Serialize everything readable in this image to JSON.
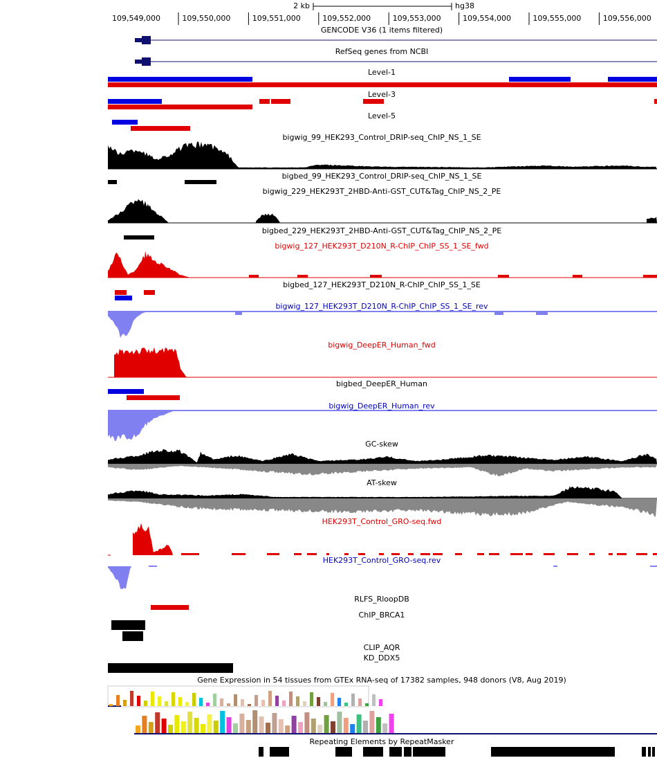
{
  "ruler": {
    "scale": "2 kb",
    "assembly": "hg38",
    "positions": [
      "109,549,000",
      "109,550,000",
      "109,551,000",
      "109,552,000",
      "109,553,000",
      "109,554,000",
      "109,555,000",
      "109,556,000"
    ]
  },
  "tracks": [
    {
      "title": "GENCODE V36 (1 items filtered)",
      "color": "#000000"
    },
    {
      "title": "RefSeq genes from NCBI",
      "color": "#000000"
    },
    {
      "title": "Level-1",
      "color": "#000000"
    },
    {
      "title": "Level-3",
      "color": "#000000"
    },
    {
      "title": "Level-5",
      "color": "#000000"
    },
    {
      "title": "bigwig_99_HEK293_Control_DRIP-seq_ChIP_NS_1_SE",
      "color": "#000000"
    },
    {
      "title": "bigbed_99_HEK293_Control_DRIP-seq_ChIP_NS_1_SE",
      "color": "#000000"
    },
    {
      "title": "bigwig_229_HEK293T_2HBD-Anti-GST_CUT&Tag_ChIP_NS_2_PE",
      "color": "#000000"
    },
    {
      "title": "bigbed_229_HEK293T_2HBD-Anti-GST_CUT&Tag_ChIP_NS_2_PE",
      "color": "#000000"
    },
    {
      "title": "bigwig_127_HEK293T_D210N_R-ChIP_ChIP_SS_1_SE_fwd",
      "color": "#e00000"
    },
    {
      "title": "bigbed_127_HEK293T_D210N_R-ChIP_ChIP_SS_1_SE",
      "color": "#000000"
    },
    {
      "title": "bigwig_127_HEK293T_D210N_R-ChIP_ChIP_SS_1_SE_rev",
      "color": "#0000c0"
    },
    {
      "title": "bigwig_DeepER_Human_fwd",
      "color": "#e00000"
    },
    {
      "title": "bigbed_DeepER_Human",
      "color": "#000000"
    },
    {
      "title": "bigwig_DeepER_Human_rev",
      "color": "#0000c0"
    },
    {
      "title": "GC-skew",
      "color": "#000000"
    },
    {
      "title": "AT-skew",
      "color": "#000000"
    },
    {
      "title": "HEK293T_Control_GRO-seq.fwd",
      "color": "#e00000"
    },
    {
      "title": "HEK293T_Control_GRO-seq.rev",
      "color": "#0000c0"
    },
    {
      "title": "RLFS_RloopDB",
      "color": "#000000"
    },
    {
      "title": "ChIP_BRCA1",
      "color": "#000000"
    },
    {
      "title": "CLIP_AQR",
      "color": "#000000"
    },
    {
      "title": "KD_DDX5",
      "color": "#000000"
    },
    {
      "title": "Gene Expression in 54 tissues from GTEx RNA-seq of 17382 samples, 948 donors (V8, Aug 2019)",
      "color": "#000000"
    },
    {
      "title": "Repeating Elements by RepeatMasker",
      "color": "#000000"
    }
  ]
}
